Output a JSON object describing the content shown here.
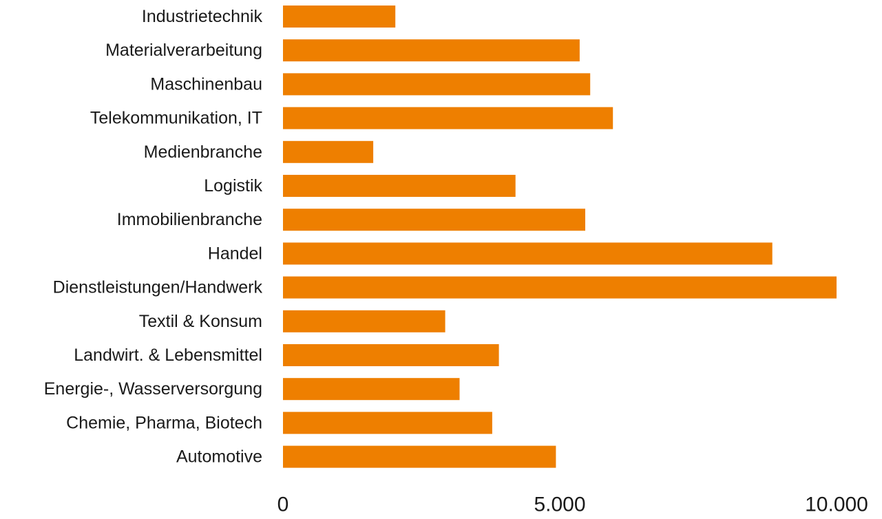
{
  "chart_data": {
    "type": "bar",
    "orientation": "horizontal",
    "title": "",
    "xlabel": "",
    "ylabel": "",
    "xlim": [
      0,
      10000
    ],
    "grid": false,
    "legend": "none",
    "bar_color": "#EE7F00",
    "categories": [
      "Industrietechnik",
      "Materialverarbeitung",
      "Maschinenbau",
      "Telekommunikation, IT",
      "Medienbranche",
      "Logistik",
      "Immobilienbranche",
      "Handel",
      "Dienstleistungen/Handwerk",
      "Textil & Konsum",
      "Landwirt. & Lebensmittel",
      "Energie-, Wasserversorgung",
      "Chemie, Pharma, Biotech",
      "Automotive"
    ],
    "values": [
      2030,
      5360,
      5550,
      5960,
      1630,
      4200,
      5460,
      8840,
      10000,
      2930,
      3900,
      3190,
      3780,
      4930
    ],
    "x_ticks": [
      {
        "value": 0,
        "label": "0"
      },
      {
        "value": 5000,
        "label": "5.000"
      },
      {
        "value": 10000,
        "label": "10.000"
      }
    ]
  }
}
